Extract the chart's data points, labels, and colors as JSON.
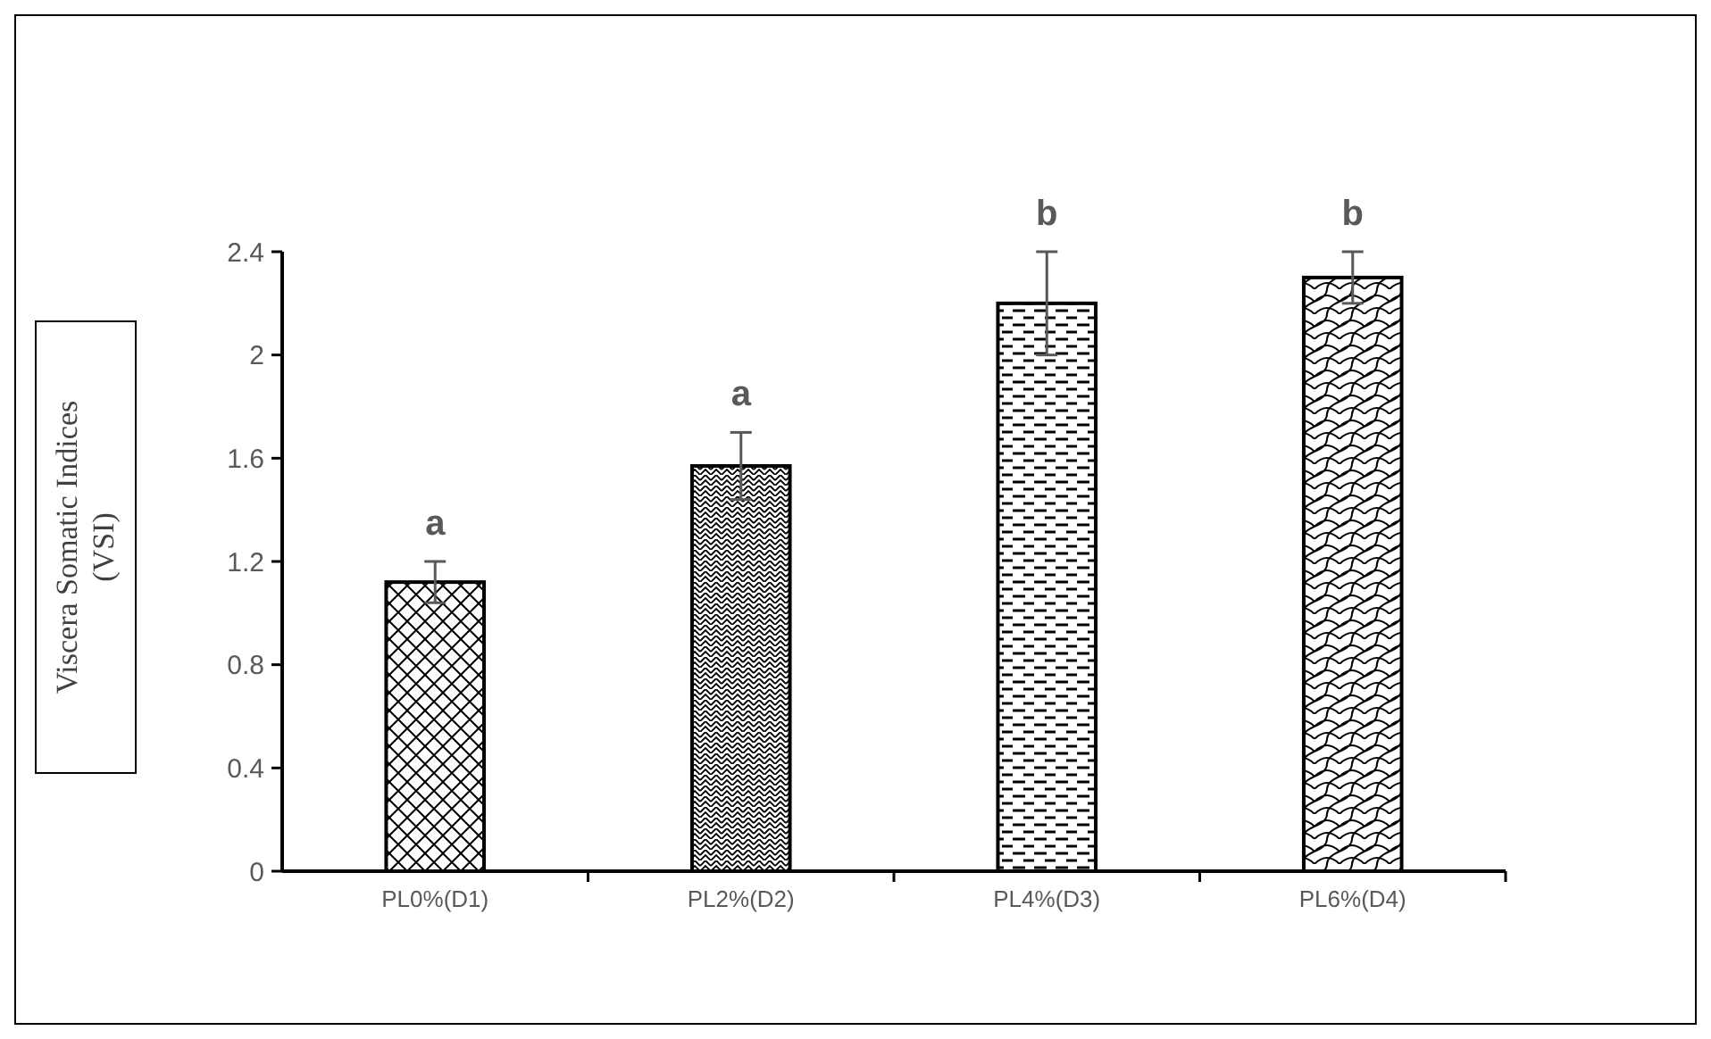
{
  "chart_data": {
    "type": "bar",
    "ylabel": "Viscera Somatic Indices (VSI)",
    "categories": [
      "PL0%(D1)",
      "PL2%(D2)",
      "PL4%(D3)",
      "PL6%(D4)"
    ],
    "values": [
      1.12,
      1.57,
      2.2,
      2.3
    ],
    "errors": [
      0.08,
      0.13,
      0.2,
      0.1
    ],
    "color": "#000000",
    "ylim": [
      0,
      2.4
    ],
    "yticks": [
      0,
      0.4,
      0.8,
      1.2,
      1.6,
      2,
      2.4
    ],
    "grid": false,
    "annotations": [
      "a",
      "a",
      "b",
      "b"
    ]
  }
}
